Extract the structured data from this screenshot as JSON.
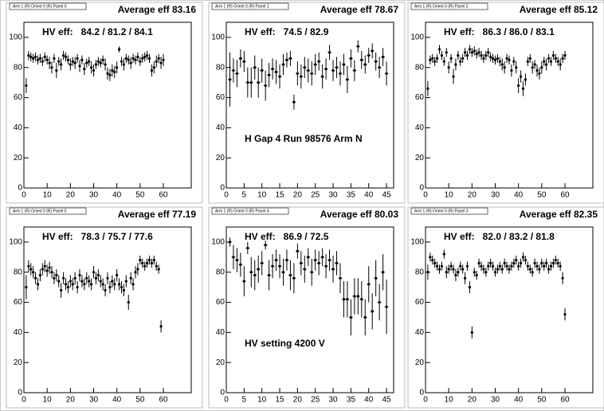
{
  "chart_data": [
    {
      "type": "scatter",
      "label": "Arm 1 (R) Orient 0 (R) Panel 0",
      "title": "Average eff 83.16",
      "annotations": [
        "HV eff:   84.2 / 81.2 / 84.1"
      ],
      "xlim": [
        0,
        72
      ],
      "xticks": [
        0,
        10,
        20,
        30,
        40,
        50,
        60
      ],
      "ylim": [
        0,
        110
      ],
      "yticks": [
        0,
        20,
        40,
        60,
        80,
        100
      ],
      "x": [
        1,
        2,
        3,
        4,
        5,
        6,
        7,
        8,
        9,
        10,
        11,
        12,
        13,
        14,
        15,
        16,
        17,
        18,
        19,
        20,
        21,
        22,
        23,
        24,
        25,
        26,
        27,
        28,
        29,
        30,
        31,
        32,
        33,
        34,
        35,
        36,
        37,
        38,
        39,
        40,
        41,
        42,
        43,
        44,
        45,
        46,
        47,
        48,
        49,
        50,
        51,
        52,
        53,
        54,
        55,
        56,
        57,
        58,
        59,
        60
      ],
      "values": [
        68,
        88,
        87,
        86,
        87,
        85,
        86,
        84,
        87,
        85,
        83,
        80,
        86,
        78,
        84,
        82,
        88,
        87,
        85,
        82,
        84,
        83,
        86,
        81,
        85,
        79,
        83,
        84,
        80,
        78,
        82,
        84,
        83,
        85,
        82,
        76,
        75,
        78,
        77,
        80,
        92,
        84,
        82,
        86,
        85,
        83,
        86,
        85,
        87,
        84,
        86,
        87,
        88,
        86,
        78,
        80,
        84,
        86,
        83,
        85
      ],
      "errors": [
        5,
        3,
        3,
        3,
        3,
        3,
        3,
        3,
        3,
        3,
        4,
        4,
        3,
        5,
        3,
        4,
        3,
        3,
        3,
        4,
        3,
        4,
        3,
        4,
        3,
        4,
        3,
        3,
        4,
        4,
        3,
        3,
        3,
        3,
        4,
        4,
        4,
        4,
        4,
        4,
        2,
        3,
        4,
        3,
        3,
        4,
        3,
        3,
        3,
        3,
        3,
        3,
        3,
        3,
        4,
        4,
        4,
        3,
        4,
        4
      ]
    },
    {
      "type": "scatter",
      "label": "Arm 1 (R) Orient 0 (R) Panel 1",
      "title": "Average eff 78.67",
      "annotations": [
        "HV eff:   74.5 / 82.9",
        "H Gap 4 Run 98576 Arm N"
      ],
      "xlim": [
        0,
        47
      ],
      "xticks": [
        0,
        5,
        10,
        15,
        20,
        25,
        30,
        35,
        40,
        45
      ],
      "ylim": [
        0,
        110
      ],
      "yticks": [
        0,
        20,
        40,
        60,
        80,
        100
      ],
      "x": [
        1,
        2,
        3,
        4,
        5,
        6,
        7,
        8,
        9,
        10,
        11,
        12,
        13,
        14,
        15,
        16,
        17,
        18,
        19,
        20,
        21,
        22,
        23,
        24,
        25,
        26,
        27,
        28,
        29,
        30,
        31,
        32,
        33,
        34,
        35,
        36,
        37,
        38,
        39,
        40,
        41,
        42,
        43,
        44,
        45
      ],
      "values": [
        72,
        78,
        76,
        86,
        84,
        70,
        70,
        80,
        70,
        78,
        68,
        75,
        79,
        77,
        74,
        82,
        85,
        86,
        57,
        76,
        74,
        80,
        78,
        76,
        82,
        84,
        74,
        79,
        90,
        78,
        80,
        76,
        82,
        72,
        86,
        78,
        94,
        85,
        82,
        88,
        91,
        84,
        80,
        87,
        76
      ],
      "errors": [
        18,
        8,
        9,
        6,
        7,
        10,
        10,
        8,
        10,
        8,
        10,
        8,
        7,
        8,
        8,
        7,
        5,
        5,
        5,
        8,
        8,
        7,
        8,
        8,
        7,
        6,
        8,
        7,
        5,
        7,
        7,
        8,
        7,
        9,
        6,
        7,
        4,
        6,
        6,
        5,
        5,
        6,
        7,
        6,
        8
      ]
    },
    {
      "type": "scatter",
      "label": "Arm 1 (R) Orient 0 (R) Panel 2",
      "title": "Average eff 85.12",
      "annotations": [
        "HV eff:   86.3 / 86.0 / 83.1"
      ],
      "xlim": [
        0,
        72
      ],
      "xticks": [
        0,
        10,
        20,
        30,
        40,
        50,
        60
      ],
      "ylim": [
        0,
        110
      ],
      "yticks": [
        0,
        20,
        40,
        60,
        80,
        100
      ],
      "x": [
        1,
        2,
        3,
        4,
        5,
        6,
        7,
        8,
        9,
        10,
        11,
        12,
        13,
        14,
        15,
        16,
        17,
        18,
        19,
        20,
        21,
        22,
        23,
        24,
        25,
        26,
        27,
        28,
        29,
        30,
        31,
        32,
        33,
        34,
        35,
        36,
        37,
        38,
        39,
        40,
        41,
        42,
        43,
        44,
        45,
        46,
        47,
        48,
        49,
        50,
        51,
        52,
        53,
        54,
        55,
        56,
        57,
        58,
        59,
        60
      ],
      "values": [
        66,
        85,
        86,
        84,
        86,
        92,
        88,
        84,
        90,
        80,
        86,
        74,
        82,
        88,
        84,
        86,
        90,
        88,
        92,
        90,
        91,
        89,
        90,
        88,
        86,
        88,
        90,
        87,
        86,
        85,
        86,
        84,
        82,
        80,
        86,
        85,
        78,
        84,
        80,
        68,
        74,
        66,
        72,
        84,
        86,
        80,
        82,
        78,
        76,
        80,
        84,
        82,
        86,
        84,
        88,
        86,
        84,
        82,
        86,
        88
      ],
      "errors": [
        5,
        3,
        3,
        3,
        3,
        3,
        3,
        3,
        3,
        4,
        3,
        5,
        4,
        3,
        3,
        3,
        3,
        3,
        3,
        3,
        3,
        3,
        3,
        3,
        3,
        3,
        3,
        3,
        3,
        3,
        3,
        3,
        4,
        4,
        3,
        3,
        4,
        3,
        4,
        5,
        4,
        5,
        4,
        3,
        3,
        4,
        3,
        4,
        4,
        4,
        3,
        4,
        3,
        3,
        3,
        3,
        3,
        4,
        3,
        3
      ]
    },
    {
      "type": "scatter",
      "label": "Arm 1 (R) Orient 0 (R) Panel 5",
      "title": "Average eff 77.19",
      "annotations": [
        "HV eff:   78.3 / 75.7 / 77.6"
      ],
      "xlim": [
        0,
        72
      ],
      "xticks": [
        0,
        10,
        20,
        30,
        40,
        50,
        60
      ],
      "ylim": [
        0,
        110
      ],
      "yticks": [
        0,
        20,
        40,
        60,
        80,
        100
      ],
      "x": [
        1,
        2,
        3,
        4,
        5,
        6,
        7,
        8,
        9,
        10,
        11,
        12,
        13,
        14,
        15,
        16,
        17,
        18,
        19,
        20,
        21,
        22,
        23,
        24,
        25,
        26,
        27,
        28,
        29,
        30,
        31,
        32,
        33,
        34,
        35,
        36,
        37,
        38,
        39,
        40,
        41,
        42,
        43,
        44,
        45,
        46,
        47,
        48,
        49,
        50,
        51,
        52,
        53,
        54,
        55,
        56,
        57,
        58,
        59
      ],
      "values": [
        70,
        84,
        82,
        80,
        76,
        72,
        78,
        82,
        84,
        81,
        83,
        80,
        76,
        78,
        74,
        68,
        76,
        72,
        70,
        74,
        72,
        76,
        70,
        78,
        74,
        72,
        76,
        74,
        72,
        80,
        76,
        78,
        74,
        72,
        68,
        76,
        70,
        74,
        72,
        78,
        72,
        70,
        68,
        74,
        60,
        76,
        72,
        80,
        82,
        88,
        86,
        84,
        86,
        88,
        86,
        88,
        84,
        82,
        44
      ],
      "errors": [
        8,
        4,
        4,
        4,
        4,
        4,
        4,
        4,
        4,
        4,
        4,
        4,
        4,
        4,
        4,
        5,
        4,
        4,
        4,
        4,
        4,
        4,
        4,
        4,
        4,
        4,
        4,
        4,
        4,
        4,
        4,
        4,
        4,
        4,
        4,
        4,
        4,
        4,
        4,
        4,
        4,
        4,
        4,
        4,
        5,
        4,
        4,
        4,
        4,
        3,
        3,
        3,
        3,
        3,
        3,
        3,
        3,
        3,
        4
      ]
    },
    {
      "type": "scatter",
      "label": "Arm 1 (R) Orient 0 (R) Panel 4",
      "title": "Average eff 80.03",
      "annotations": [
        "HV eff:   86.9 / 72.5",
        "HV setting 4200 V"
      ],
      "xlim": [
        0,
        47
      ],
      "xticks": [
        0,
        5,
        10,
        15,
        20,
        25,
        30,
        35,
        40,
        45
      ],
      "ylim": [
        0,
        110
      ],
      "yticks": [
        0,
        20,
        40,
        60,
        80,
        100
      ],
      "x": [
        1,
        2,
        3,
        4,
        5,
        6,
        7,
        8,
        9,
        10,
        11,
        12,
        13,
        14,
        15,
        16,
        17,
        18,
        19,
        20,
        21,
        22,
        23,
        24,
        25,
        26,
        27,
        28,
        29,
        30,
        31,
        32,
        33,
        34,
        35,
        36,
        37,
        38,
        39,
        40,
        41,
        42,
        43,
        44,
        45
      ],
      "values": [
        100,
        90,
        88,
        85,
        74,
        96,
        80,
        78,
        82,
        86,
        98,
        78,
        84,
        88,
        84,
        80,
        88,
        78,
        76,
        94,
        86,
        82,
        90,
        80,
        88,
        86,
        90,
        84,
        88,
        82,
        86,
        76,
        62,
        62,
        50,
        64,
        64,
        62,
        50,
        72,
        54,
        76,
        60,
        80,
        57
      ],
      "errors": [
        3,
        8,
        8,
        8,
        10,
        4,
        10,
        10,
        9,
        8,
        3,
        10,
        8,
        7,
        8,
        9,
        7,
        10,
        10,
        5,
        8,
        9,
        6,
        9,
        7,
        8,
        6,
        8,
        7,
        9,
        8,
        10,
        12,
        12,
        12,
        12,
        12,
        12,
        12,
        12,
        12,
        12,
        12,
        12,
        18
      ]
    },
    {
      "type": "scatter",
      "label": "Arm 1 (R) Orient 0 (R) Panel 3",
      "title": "Average eff 82.35",
      "annotations": [
        "HV eff:   82.0 / 83.2 / 81.8"
      ],
      "xlim": [
        0,
        72
      ],
      "xticks": [
        0,
        10,
        20,
        30,
        40,
        50,
        60
      ],
      "ylim": [
        0,
        110
      ],
      "yticks": [
        0,
        20,
        40,
        60,
        80,
        100
      ],
      "x": [
        1,
        2,
        3,
        4,
        5,
        6,
        7,
        8,
        9,
        10,
        11,
        12,
        13,
        14,
        15,
        16,
        17,
        18,
        19,
        20,
        21,
        22,
        23,
        24,
        25,
        26,
        27,
        28,
        29,
        30,
        31,
        32,
        33,
        34,
        35,
        36,
        37,
        38,
        39,
        40,
        41,
        42,
        43,
        44,
        45,
        46,
        47,
        48,
        49,
        50,
        51,
        52,
        53,
        54,
        55,
        56,
        57,
        58,
        59,
        60
      ],
      "values": [
        80,
        90,
        88,
        86,
        84,
        82,
        84,
        92,
        80,
        82,
        84,
        82,
        78,
        80,
        84,
        82,
        76,
        84,
        70,
        40,
        80,
        78,
        86,
        84,
        82,
        80,
        84,
        86,
        84,
        80,
        82,
        84,
        82,
        86,
        84,
        82,
        84,
        86,
        88,
        84,
        86,
        90,
        88,
        84,
        82,
        80,
        86,
        84,
        82,
        86,
        84,
        86,
        82,
        84,
        86,
        88,
        86,
        84,
        76,
        52
      ],
      "errors": [
        5,
        3,
        3,
        3,
        3,
        3,
        3,
        3,
        4,
        3,
        3,
        3,
        4,
        3,
        3,
        3,
        4,
        3,
        4,
        4,
        3,
        3,
        3,
        3,
        3,
        3,
        3,
        3,
        3,
        3,
        3,
        3,
        3,
        3,
        3,
        3,
        3,
        3,
        3,
        3,
        3,
        3,
        3,
        3,
        3,
        3,
        3,
        3,
        3,
        3,
        3,
        3,
        3,
        3,
        3,
        3,
        3,
        3,
        4,
        4
      ]
    }
  ]
}
